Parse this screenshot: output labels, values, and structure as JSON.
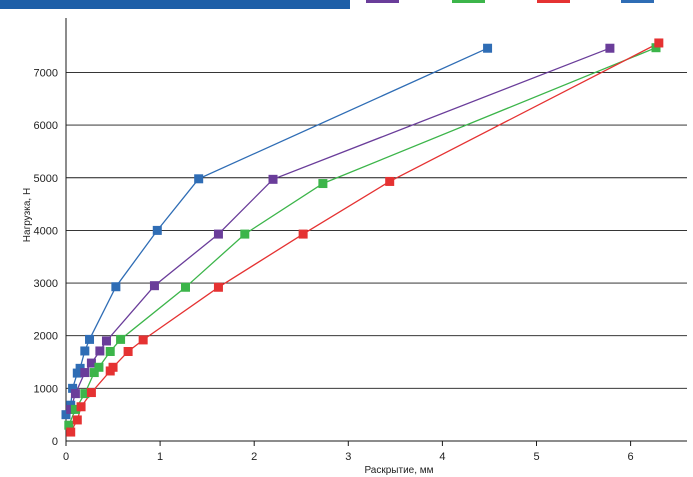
{
  "chart_data": {
    "type": "line",
    "title": "",
    "xlabel": "Раскрытие, мм",
    "ylabel": "Нагрузка, Н",
    "xlim": [
      0,
      6.5
    ],
    "ylim": [
      0,
      7800
    ],
    "xticks": [
      "0",
      "1",
      "2",
      "3",
      "4",
      "5",
      "6"
    ],
    "yticks": [
      "0",
      "1000",
      "2000",
      "3000",
      "4000",
      "5000",
      "6000",
      "7000"
    ],
    "grid": "horizontal",
    "legend": "top, partially cropped; labels not visible",
    "series": [
      {
        "color": "#2f6db5",
        "points": [
          [
            0.0,
            500
          ],
          [
            0.05,
            680
          ],
          [
            0.07,
            1000
          ],
          [
            0.12,
            1290
          ],
          [
            0.15,
            1380
          ],
          [
            0.2,
            1710
          ],
          [
            0.25,
            1930
          ],
          [
            0.53,
            2930
          ],
          [
            0.97,
            4000
          ],
          [
            1.41,
            4980
          ],
          [
            4.48,
            7460
          ]
        ]
      },
      {
        "color": "#6a3d9a",
        "points": [
          [
            0.05,
            600
          ],
          [
            0.1,
            900
          ],
          [
            0.2,
            1300
          ],
          [
            0.27,
            1480
          ],
          [
            0.36,
            1710
          ],
          [
            0.43,
            1900
          ],
          [
            0.94,
            2950
          ],
          [
            1.62,
            3930
          ],
          [
            2.2,
            4970
          ],
          [
            5.78,
            7460
          ]
        ]
      },
      {
        "color": "#3cb54a",
        "points": [
          [
            0.03,
            300
          ],
          [
            0.1,
            600
          ],
          [
            0.2,
            900
          ],
          [
            0.3,
            1300
          ],
          [
            0.35,
            1400
          ],
          [
            0.47,
            1700
          ],
          [
            0.58,
            1930
          ],
          [
            1.27,
            2920
          ],
          [
            1.9,
            3930
          ],
          [
            2.73,
            4890
          ],
          [
            6.27,
            7470
          ]
        ]
      },
      {
        "color": "#e53232",
        "points": [
          [
            0.05,
            170
          ],
          [
            0.12,
            400
          ],
          [
            0.16,
            650
          ],
          [
            0.27,
            920
          ],
          [
            0.47,
            1330
          ],
          [
            0.5,
            1400
          ],
          [
            0.66,
            1700
          ],
          [
            0.82,
            1920
          ],
          [
            1.62,
            2920
          ],
          [
            2.52,
            3930
          ],
          [
            3.44,
            4930
          ],
          [
            6.3,
            7560
          ]
        ]
      }
    ]
  }
}
